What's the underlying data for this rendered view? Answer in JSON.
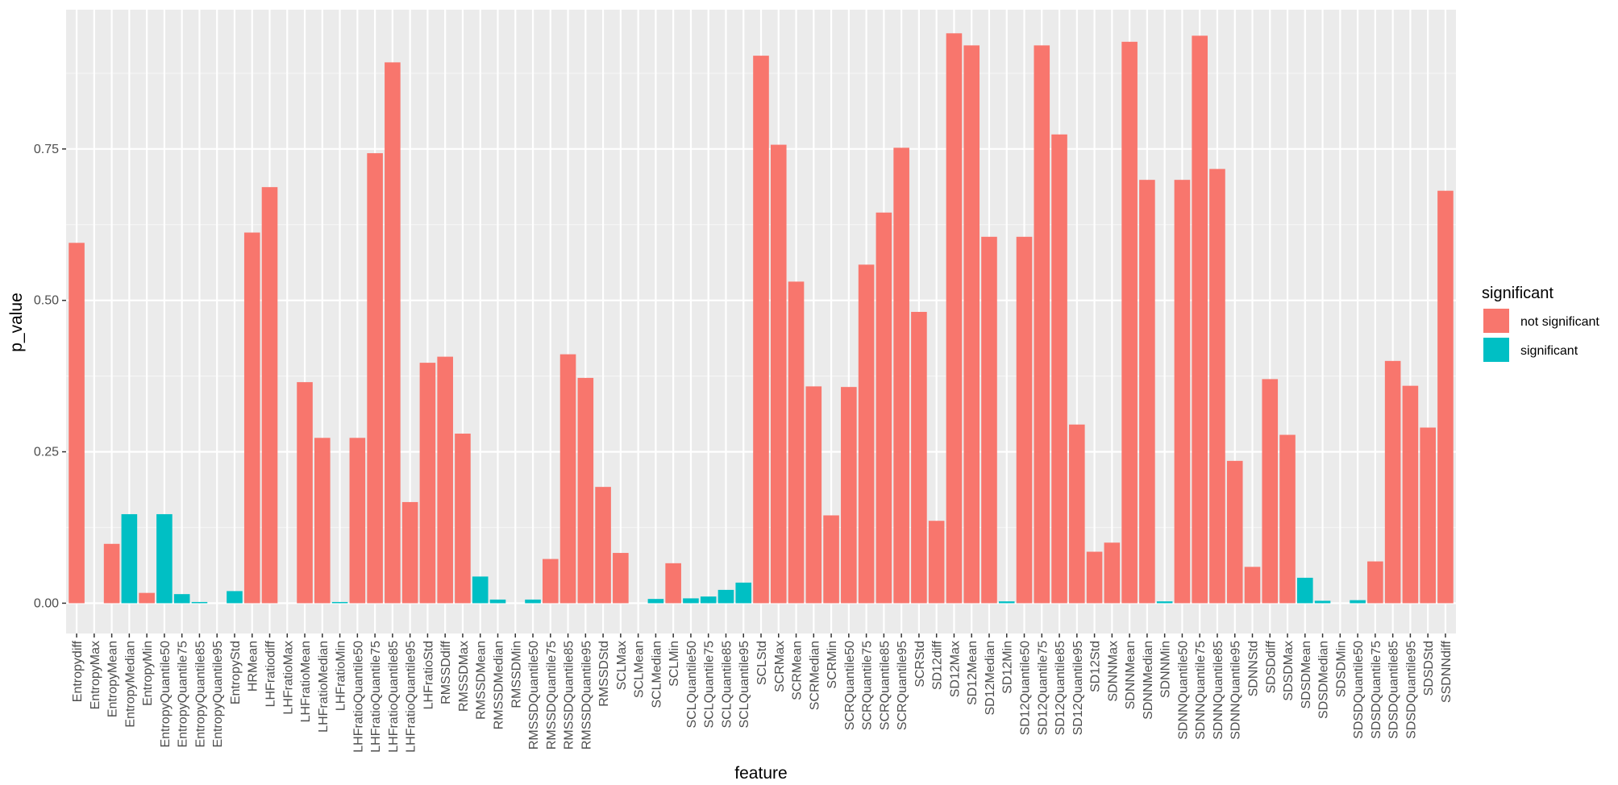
{
  "chart_data": {
    "type": "bar",
    "title": "",
    "xlabel": "feature",
    "ylabel": "p_value",
    "ylim": [
      -0.05,
      0.98
    ],
    "yticks": [
      0.0,
      0.25,
      0.5,
      0.75
    ],
    "ytick_labels": [
      "0.00",
      "0.25",
      "0.50",
      "0.75"
    ],
    "grid": true,
    "legend": {
      "title": "significant",
      "position": "right",
      "entries": [
        {
          "label": "not significant",
          "color": "#F8766D"
        },
        {
          "label": "significant",
          "color": "#00BFC4"
        }
      ]
    },
    "colors": {
      "not_significant": "#F8766D",
      "significant": "#00BFC4",
      "panel_background": "#EBEBEB",
      "grid_major": "#FFFFFF"
    },
    "categories": [
      "Entropydiff",
      "EntropyMax",
      "EntropyMean",
      "EntropyMedian",
      "EntropyMin",
      "EntropyQuantile50",
      "EntropyQuantile75",
      "EntropyQuantile85",
      "EntropyQuantile95",
      "EntropyStd",
      "HRMean",
      "LHFratiodiff",
      "LHFratioMax",
      "LHFratioMean",
      "LHFratioMedian",
      "LHFratioMin",
      "LHFratioQuantile50",
      "LHFratioQuantile75",
      "LHFratioQuantile85",
      "LHFratioQuantile95",
      "LHFratioStd",
      "RMSSDdiff",
      "RMSSDMax",
      "RMSSDMean",
      "RMSSDMedian",
      "RMSSDMin",
      "RMSSDQuantile50",
      "RMSSDQuantile75",
      "RMSSDQuantile85",
      "RMSSDQuantile95",
      "RMSSDStd",
      "SCLMax",
      "SCLMean",
      "SCLMedian",
      "SCLMin",
      "SCLQuantile50",
      "SCLQuantile75",
      "SCLQuantile85",
      "SCLQuantile95",
      "SCLStd",
      "SCRMax",
      "SCRMean",
      "SCRMedian",
      "SCRMin",
      "SCRQuantile50",
      "SCRQuantile75",
      "SCRQuantile85",
      "SCRQuantile95",
      "SCRStd",
      "SD12diff",
      "SD12Max",
      "SD12Mean",
      "SD12Median",
      "SD12Min",
      "SD12Quantile50",
      "SD12Quantile75",
      "SD12Quantile85",
      "SD12Quantile95",
      "SD12Std",
      "SDNNMax",
      "SDNNMean",
      "SDNNMedian",
      "SDNNMin",
      "SDNNQuantile50",
      "SDNNQuantile75",
      "SDNNQuantile85",
      "SDNNQuantile95",
      "SDNNStd",
      "SDSDdiff",
      "SDSDMax",
      "SDSDMean",
      "SDSDMedian",
      "SDSDMin",
      "SDSDQuantile50",
      "SDSDQuantile75",
      "SDSDQuantile85",
      "SDSDQuantile95",
      "SDSDStd",
      "SSDNNdiff"
    ],
    "values": [
      0.595,
      0.0,
      0.098,
      0.147,
      0.017,
      0.147,
      0.015,
      0.002,
      0.0,
      0.02,
      0.612,
      0.687,
      0.0,
      0.365,
      0.273,
      0.002,
      0.273,
      0.743,
      0.893,
      0.167,
      0.397,
      0.407,
      0.28,
      0.044,
      0.006,
      0.0,
      0.006,
      0.073,
      0.411,
      0.372,
      0.192,
      0.083,
      0.0,
      0.007,
      0.066,
      0.008,
      0.011,
      0.022,
      0.034,
      0.904,
      0.757,
      0.531,
      0.358,
      0.145,
      0.357,
      0.559,
      0.645,
      0.752,
      0.481,
      0.136,
      0.941,
      0.921,
      0.605,
      0.003,
      0.605,
      0.921,
      0.774,
      0.295,
      0.085,
      0.1,
      0.927,
      0.699,
      0.003,
      0.699,
      0.937,
      0.717,
      0.235,
      0.06,
      0.37,
      0.278,
      0.042,
      0.004,
      0.0,
      0.005,
      0.069,
      0.4,
      0.359,
      0.29,
      0.681
    ],
    "significant": [
      false,
      false,
      false,
      true,
      false,
      true,
      true,
      true,
      true,
      true,
      false,
      false,
      false,
      false,
      false,
      true,
      false,
      false,
      false,
      false,
      false,
      false,
      false,
      true,
      true,
      true,
      true,
      false,
      false,
      false,
      false,
      false,
      true,
      true,
      false,
      true,
      true,
      true,
      true,
      false,
      false,
      false,
      false,
      false,
      false,
      false,
      false,
      false,
      false,
      false,
      false,
      false,
      false,
      true,
      false,
      false,
      false,
      false,
      false,
      false,
      false,
      false,
      true,
      false,
      false,
      false,
      false,
      false,
      false,
      false,
      true,
      true,
      true,
      true,
      false,
      false,
      false,
      false,
      false
    ]
  }
}
